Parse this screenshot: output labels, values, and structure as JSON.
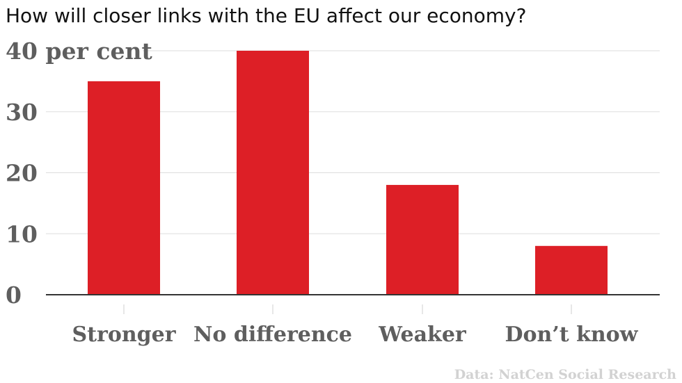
{
  "chart_data": {
    "type": "bar",
    "title": "How will closer links with the EU affect our economy?",
    "categories": [
      "Stronger",
      "No difference",
      "Weaker",
      "Don’t know"
    ],
    "values": [
      35,
      40,
      18,
      8
    ],
    "ylim": [
      0,
      40
    ],
    "yticks": [
      {
        "value": 0,
        "label": "0"
      },
      {
        "value": 10,
        "label": "10"
      },
      {
        "value": 20,
        "label": "20"
      },
      {
        "value": 30,
        "label": "30"
      },
      {
        "value": 40,
        "label": "40 per cent"
      }
    ],
    "bar_color": "#dd1f26",
    "grid": true,
    "source": "Data: NatCen Social Research"
  }
}
